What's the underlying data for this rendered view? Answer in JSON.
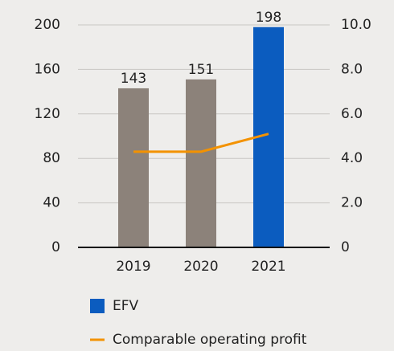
{
  "chart_data": {
    "type": "bar",
    "categories": [
      "2019",
      "2020",
      "2021"
    ],
    "series": [
      {
        "name": "EFV",
        "color": "#0b5cbf",
        "point_colors": [
          "#8c827a",
          "#8c827a",
          "#0b5cbf"
        ],
        "values": [
          143,
          151,
          198
        ],
        "type": "bar"
      },
      {
        "name": "Comparable operating profit",
        "color": "#f39200",
        "values": [
          4.3,
          4.3,
          5.1
        ],
        "type": "line",
        "axis": "y2"
      }
    ],
    "ylim": [
      0,
      200
    ],
    "yticks": [
      0,
      40,
      80,
      120,
      160,
      200
    ],
    "y2lim": [
      0,
      10
    ],
    "y2ticks": [
      0,
      {
        "value": 2,
        "label": "2.0"
      },
      {
        "value": 4,
        "label": "4.0"
      },
      {
        "value": 6,
        "label": "6.0"
      },
      {
        "value": 8,
        "label": "8.0"
      },
      {
        "value": 10,
        "label": "10.0"
      }
    ],
    "grid": true,
    "legend": "bottom"
  }
}
